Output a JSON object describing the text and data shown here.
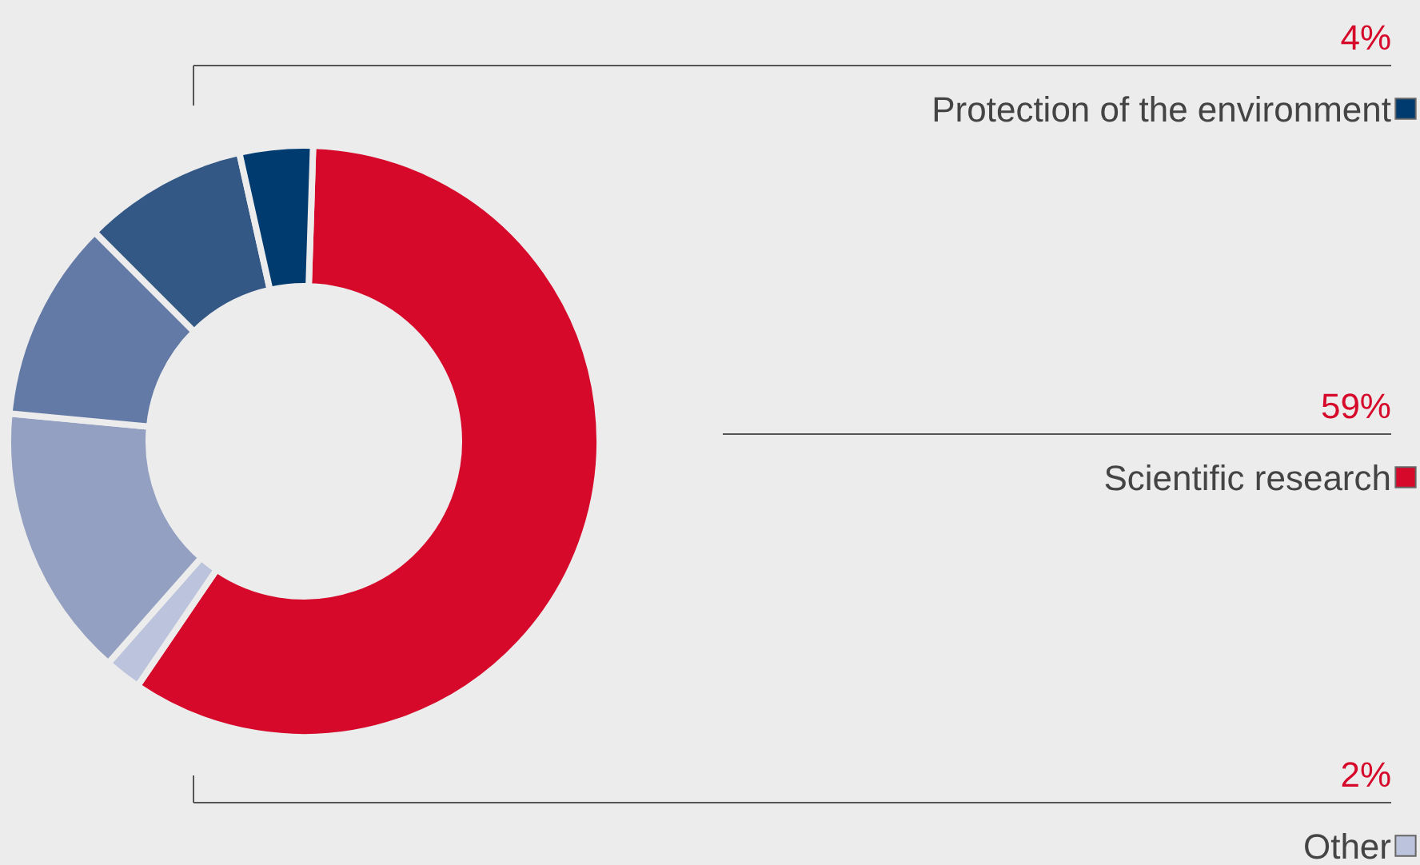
{
  "chart_data": {
    "type": "donut",
    "categories": [
      "Scientific research",
      "Other",
      null,
      null,
      null,
      "Protection of the environment"
    ],
    "values": [
      59,
      2,
      15,
      11,
      9,
      4
    ],
    "value_labels": [
      "59%",
      "2%",
      null,
      null,
      null,
      "4%"
    ],
    "colors": [
      "#d6092b",
      "#bcc3dc",
      "#93a0c2",
      "#647aa6",
      "#345886",
      "#003b6f"
    ],
    "legend": "right"
  }
}
